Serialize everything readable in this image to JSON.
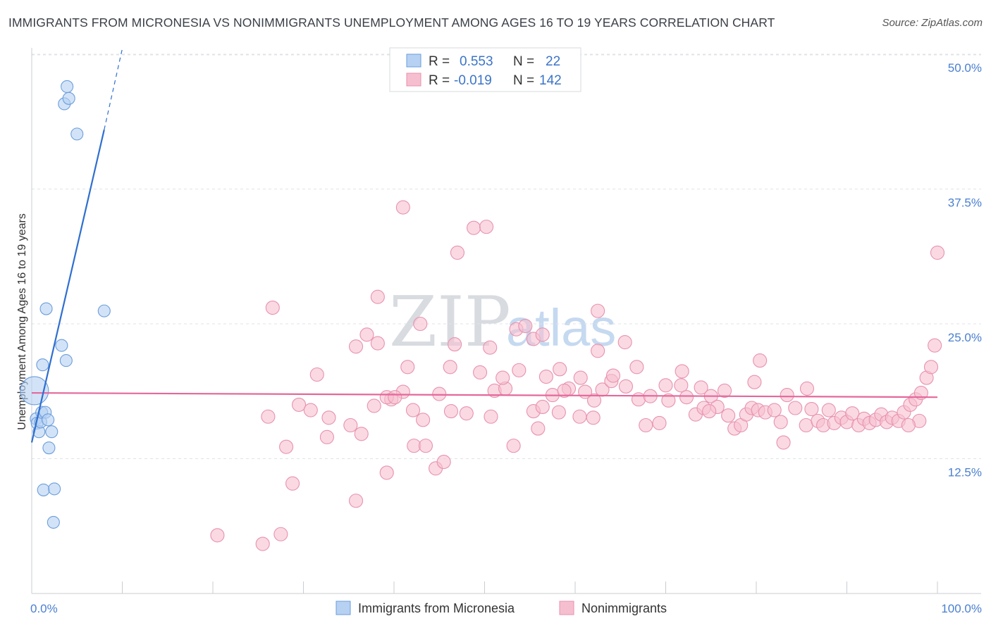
{
  "title": "IMMIGRANTS FROM MICRONESIA VS NONIMMIGRANTS UNEMPLOYMENT AMONG AGES 16 TO 19 YEARS CORRELATION CHART",
  "source": "Source: ZipAtlas.com",
  "watermark": {
    "zip": "ZIP",
    "atlas": "atlas"
  },
  "colors": {
    "blue_fill": "#b6d1f2",
    "blue_stroke": "#6b9edc",
    "blue_line": "#2f6fcf",
    "pink_fill": "#f6bfd0",
    "pink_stroke": "#e892ae",
    "pink_line": "#e4689a",
    "grid": "#dfe3e8",
    "tick_label": "#4a7fd0"
  },
  "legend_top": {
    "rows": [
      {
        "r_label": "R =",
        "r_value": "0.553",
        "n_label": "N =",
        "n_value": "22"
      },
      {
        "r_label": "R =",
        "r_value": "-0.019",
        "n_label": "N =",
        "n_value": "142"
      }
    ]
  },
  "legend_bottom": {
    "items": [
      "Immigrants from Micronesia",
      "Nonimmigrants"
    ]
  },
  "chart_data": {
    "type": "scatter",
    "xlabel": "",
    "ylabel": "Unemployment Among Ages 16 to 19 years",
    "xlim": [
      0,
      100
    ],
    "ylim": [
      0,
      50
    ],
    "x_tick_labels": [
      "0.0%",
      "100.0%"
    ],
    "y_ticks": [
      12.5,
      25.0,
      37.5,
      50.0
    ],
    "y_tick_labels": [
      "12.5%",
      "25.0%",
      "37.5%",
      "50.0%"
    ],
    "series": [
      {
        "name": "Immigrants from Micronesia",
        "r": 0.553,
        "n": 22,
        "trend": {
          "x0": 0.0,
          "y0": 14.0,
          "x1": 8.0,
          "y1": 43.0,
          "dash_to_x": 10.0,
          "dash_to_y": 50.5
        },
        "points": [
          {
            "x": 0.3,
            "y": 18.8,
            "s": 3
          },
          {
            "x": 0.5,
            "y": 16.2,
            "s": 1
          },
          {
            "x": 0.6,
            "y": 15.8,
            "s": 1
          },
          {
            "x": 0.8,
            "y": 15.0,
            "s": 1
          },
          {
            "x": 1.0,
            "y": 15.9,
            "s": 1
          },
          {
            "x": 1.1,
            "y": 16.8,
            "s": 1
          },
          {
            "x": 1.2,
            "y": 21.2,
            "s": 1
          },
          {
            "x": 1.5,
            "y": 16.8,
            "s": 1
          },
          {
            "x": 1.6,
            "y": 26.4,
            "s": 1
          },
          {
            "x": 1.8,
            "y": 16.1,
            "s": 1
          },
          {
            "x": 1.9,
            "y": 13.5,
            "s": 1
          },
          {
            "x": 2.2,
            "y": 15.0,
            "s": 1
          },
          {
            "x": 1.3,
            "y": 9.6,
            "s": 1
          },
          {
            "x": 2.5,
            "y": 9.7,
            "s": 1
          },
          {
            "x": 2.4,
            "y": 6.6,
            "s": 1
          },
          {
            "x": 3.3,
            "y": 23.0,
            "s": 1
          },
          {
            "x": 3.8,
            "y": 21.6,
            "s": 1
          },
          {
            "x": 3.6,
            "y": 45.4,
            "s": 1
          },
          {
            "x": 3.9,
            "y": 47.0,
            "s": 1
          },
          {
            "x": 4.1,
            "y": 45.9,
            "s": 1
          },
          {
            "x": 5.0,
            "y": 42.6,
            "s": 1
          },
          {
            "x": 8.0,
            "y": 26.2,
            "s": 1
          }
        ]
      },
      {
        "name": "Nonimmigrants",
        "r": -0.019,
        "n": 142,
        "trend": {
          "x0": 0.0,
          "y0": 18.6,
          "x1": 100.0,
          "y1": 18.2
        },
        "points": [
          {
            "x": 20.5,
            "y": 5.4,
            "s": 1
          },
          {
            "x": 25.5,
            "y": 4.6,
            "s": 1
          },
          {
            "x": 27.5,
            "y": 5.5,
            "s": 1
          },
          {
            "x": 28.8,
            "y": 10.2,
            "s": 1
          },
          {
            "x": 35.8,
            "y": 8.6,
            "s": 1
          },
          {
            "x": 39.2,
            "y": 11.2,
            "s": 1
          },
          {
            "x": 44.6,
            "y": 11.6,
            "s": 1
          },
          {
            "x": 45.5,
            "y": 12.2,
            "s": 1
          },
          {
            "x": 28.1,
            "y": 13.6,
            "s": 1
          },
          {
            "x": 32.6,
            "y": 14.5,
            "s": 1
          },
          {
            "x": 36.4,
            "y": 14.8,
            "s": 1
          },
          {
            "x": 42.2,
            "y": 13.7,
            "s": 1
          },
          {
            "x": 43.5,
            "y": 13.7,
            "s": 1
          },
          {
            "x": 53.2,
            "y": 13.7,
            "s": 1
          },
          {
            "x": 26.1,
            "y": 16.4,
            "s": 1
          },
          {
            "x": 29.5,
            "y": 17.5,
            "s": 1
          },
          {
            "x": 30.8,
            "y": 17.0,
            "s": 1
          },
          {
            "x": 32.8,
            "y": 16.3,
            "s": 1
          },
          {
            "x": 35.2,
            "y": 15.6,
            "s": 1
          },
          {
            "x": 37.8,
            "y": 17.4,
            "s": 1
          },
          {
            "x": 39.7,
            "y": 18.0,
            "s": 1
          },
          {
            "x": 41.0,
            "y": 18.7,
            "s": 1
          },
          {
            "x": 42.1,
            "y": 17.0,
            "s": 1
          },
          {
            "x": 43.2,
            "y": 16.1,
            "s": 1
          },
          {
            "x": 46.3,
            "y": 16.9,
            "s": 1
          },
          {
            "x": 48.0,
            "y": 16.7,
            "s": 1
          },
          {
            "x": 50.7,
            "y": 16.4,
            "s": 1
          },
          {
            "x": 51.1,
            "y": 18.8,
            "s": 1
          },
          {
            "x": 52.3,
            "y": 19.0,
            "s": 1
          },
          {
            "x": 55.4,
            "y": 16.9,
            "s": 1
          },
          {
            "x": 56.4,
            "y": 17.3,
            "s": 1
          },
          {
            "x": 55.9,
            "y": 15.3,
            "s": 1
          },
          {
            "x": 57.5,
            "y": 18.4,
            "s": 1
          },
          {
            "x": 58.2,
            "y": 16.8,
            "s": 1
          },
          {
            "x": 59.3,
            "y": 19.0,
            "s": 1
          },
          {
            "x": 60.5,
            "y": 16.4,
            "s": 1
          },
          {
            "x": 62.1,
            "y": 17.9,
            "s": 1
          },
          {
            "x": 63.0,
            "y": 18.9,
            "s": 1
          },
          {
            "x": 64.0,
            "y": 19.7,
            "s": 1
          },
          {
            "x": 65.6,
            "y": 19.2,
            "s": 1
          },
          {
            "x": 67.8,
            "y": 15.6,
            "s": 1
          },
          {
            "x": 69.3,
            "y": 15.8,
            "s": 1
          },
          {
            "x": 70.3,
            "y": 17.9,
            "s": 1
          },
          {
            "x": 71.7,
            "y": 19.3,
            "s": 1
          },
          {
            "x": 72.3,
            "y": 18.2,
            "s": 1
          },
          {
            "x": 73.3,
            "y": 16.6,
            "s": 1
          },
          {
            "x": 74.2,
            "y": 17.2,
            "s": 1
          },
          {
            "x": 75.0,
            "y": 18.3,
            "s": 1
          },
          {
            "x": 75.7,
            "y": 17.3,
            "s": 1
          },
          {
            "x": 76.5,
            "y": 18.8,
            "s": 1
          },
          {
            "x": 76.9,
            "y": 16.5,
            "s": 1
          },
          {
            "x": 77.6,
            "y": 15.3,
            "s": 1
          },
          {
            "x": 78.3,
            "y": 15.6,
            "s": 1
          },
          {
            "x": 78.9,
            "y": 16.6,
            "s": 1
          },
          {
            "x": 79.5,
            "y": 17.2,
            "s": 1
          },
          {
            "x": 80.2,
            "y": 17.0,
            "s": 1
          },
          {
            "x": 81.0,
            "y": 16.8,
            "s": 1
          },
          {
            "x": 82.0,
            "y": 17.0,
            "s": 1
          },
          {
            "x": 82.7,
            "y": 15.9,
            "s": 1
          },
          {
            "x": 83.4,
            "y": 18.4,
            "s": 1
          },
          {
            "x": 84.3,
            "y": 17.2,
            "s": 1
          },
          {
            "x": 85.5,
            "y": 15.6,
            "s": 1
          },
          {
            "x": 86.1,
            "y": 17.1,
            "s": 1
          },
          {
            "x": 86.8,
            "y": 16.0,
            "s": 1
          },
          {
            "x": 87.4,
            "y": 15.6,
            "s": 1
          },
          {
            "x": 88.0,
            "y": 17.0,
            "s": 1
          },
          {
            "x": 88.6,
            "y": 15.8,
            "s": 1
          },
          {
            "x": 89.4,
            "y": 16.3,
            "s": 1
          },
          {
            "x": 90.0,
            "y": 15.9,
            "s": 1
          },
          {
            "x": 90.6,
            "y": 16.7,
            "s": 1
          },
          {
            "x": 91.3,
            "y": 15.6,
            "s": 1
          },
          {
            "x": 91.9,
            "y": 16.2,
            "s": 1
          },
          {
            "x": 92.5,
            "y": 15.8,
            "s": 1
          },
          {
            "x": 93.2,
            "y": 16.1,
            "s": 1
          },
          {
            "x": 93.8,
            "y": 16.6,
            "s": 1
          },
          {
            "x": 94.4,
            "y": 15.9,
            "s": 1
          },
          {
            "x": 95.0,
            "y": 16.3,
            "s": 1
          },
          {
            "x": 95.7,
            "y": 16.0,
            "s": 1
          },
          {
            "x": 96.3,
            "y": 16.8,
            "s": 1
          },
          {
            "x": 97.0,
            "y": 17.5,
            "s": 1
          },
          {
            "x": 97.6,
            "y": 18.0,
            "s": 1
          },
          {
            "x": 98.2,
            "y": 18.6,
            "s": 1
          },
          {
            "x": 98.8,
            "y": 20.0,
            "s": 1
          },
          {
            "x": 99.3,
            "y": 21.0,
            "s": 1
          },
          {
            "x": 99.7,
            "y": 23.0,
            "s": 1
          },
          {
            "x": 100.0,
            "y": 31.6,
            "s": 1
          },
          {
            "x": 98.0,
            "y": 16.0,
            "s": 1
          },
          {
            "x": 96.8,
            "y": 15.6,
            "s": 1
          },
          {
            "x": 41.5,
            "y": 21.0,
            "s": 1
          },
          {
            "x": 46.2,
            "y": 21.0,
            "s": 1
          },
          {
            "x": 49.5,
            "y": 20.5,
            "s": 1
          },
          {
            "x": 53.8,
            "y": 20.7,
            "s": 1
          },
          {
            "x": 58.3,
            "y": 20.8,
            "s": 1
          },
          {
            "x": 60.6,
            "y": 20.0,
            "s": 1
          },
          {
            "x": 61.1,
            "y": 18.7,
            "s": 1
          },
          {
            "x": 64.2,
            "y": 20.2,
            "s": 1
          },
          {
            "x": 66.8,
            "y": 21.0,
            "s": 1
          },
          {
            "x": 70.0,
            "y": 19.3,
            "s": 1
          },
          {
            "x": 71.8,
            "y": 20.6,
            "s": 1
          },
          {
            "x": 79.8,
            "y": 19.6,
            "s": 1
          },
          {
            "x": 80.4,
            "y": 21.6,
            "s": 1
          },
          {
            "x": 85.6,
            "y": 19.0,
            "s": 1
          },
          {
            "x": 62.5,
            "y": 22.5,
            "s": 1
          },
          {
            "x": 46.7,
            "y": 23.1,
            "s": 1
          },
          {
            "x": 55.4,
            "y": 23.6,
            "s": 1
          },
          {
            "x": 65.5,
            "y": 23.3,
            "s": 1
          },
          {
            "x": 50.6,
            "y": 22.8,
            "s": 1
          },
          {
            "x": 31.5,
            "y": 20.3,
            "s": 1
          },
          {
            "x": 35.8,
            "y": 22.9,
            "s": 1
          },
          {
            "x": 37.0,
            "y": 24.0,
            "s": 1
          },
          {
            "x": 38.2,
            "y": 23.2,
            "s": 1
          },
          {
            "x": 39.2,
            "y": 18.2,
            "s": 1
          },
          {
            "x": 42.9,
            "y": 25.0,
            "s": 1
          },
          {
            "x": 53.5,
            "y": 24.5,
            "s": 1
          },
          {
            "x": 56.4,
            "y": 24.0,
            "s": 1
          },
          {
            "x": 62.5,
            "y": 26.2,
            "s": 1
          },
          {
            "x": 26.6,
            "y": 26.5,
            "s": 1
          },
          {
            "x": 38.2,
            "y": 27.5,
            "s": 1
          },
          {
            "x": 47.0,
            "y": 31.6,
            "s": 1
          },
          {
            "x": 48.8,
            "y": 33.9,
            "s": 1
          },
          {
            "x": 50.2,
            "y": 34.0,
            "s": 1
          },
          {
            "x": 41.0,
            "y": 35.8,
            "s": 1
          },
          {
            "x": 54.5,
            "y": 24.8,
            "s": 1
          },
          {
            "x": 67.0,
            "y": 18.0,
            "s": 1
          },
          {
            "x": 68.3,
            "y": 18.3,
            "s": 1
          },
          {
            "x": 73.9,
            "y": 19.1,
            "s": 1
          },
          {
            "x": 74.8,
            "y": 16.9,
            "s": 1
          },
          {
            "x": 52.0,
            "y": 20.0,
            "s": 1
          },
          {
            "x": 45.0,
            "y": 18.5,
            "s": 1
          },
          {
            "x": 56.8,
            "y": 20.1,
            "s": 1
          },
          {
            "x": 58.8,
            "y": 18.8,
            "s": 1
          },
          {
            "x": 40.1,
            "y": 18.2,
            "s": 1
          },
          {
            "x": 62.0,
            "y": 16.3,
            "s": 1
          },
          {
            "x": 83.0,
            "y": 14.0,
            "s": 1
          }
        ]
      }
    ]
  }
}
